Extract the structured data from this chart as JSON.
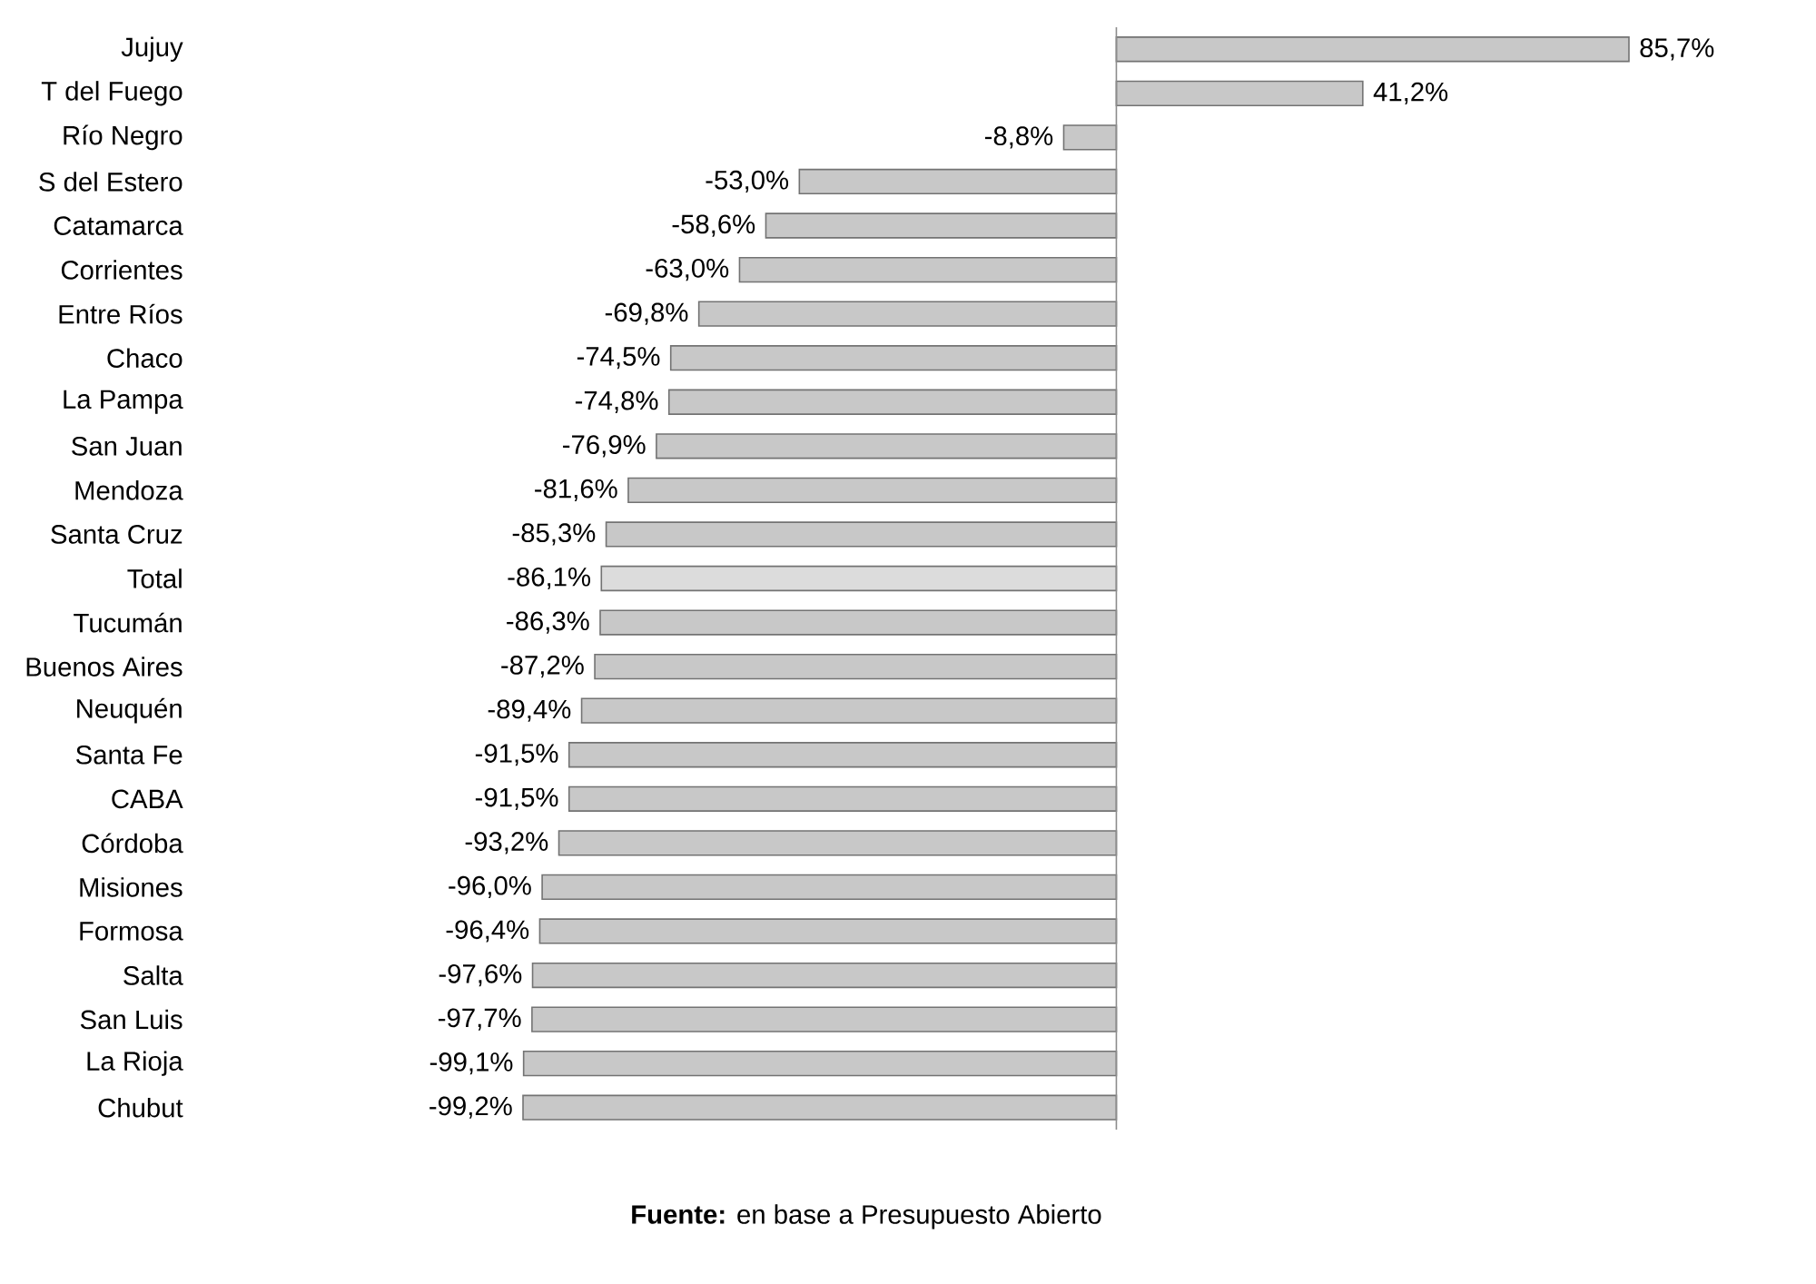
{
  "chart_data": {
    "type": "bar",
    "orientation": "horizontal",
    "categories": [
      "Jujuy",
      "T del Fuego",
      "Río Negro",
      "S del Estero",
      "Catamarca",
      "Corrientes",
      "Entre Ríos",
      "Chaco",
      "La Pampa",
      "San Juan",
      "Mendoza",
      "Santa Cruz",
      "Total",
      "Tucumán",
      "Buenos Aires",
      "Neuquén",
      "Santa Fe",
      "CABA",
      "Córdoba",
      "Misiones",
      "Formosa",
      "Salta",
      "San Luis",
      "La Rioja",
      "Chubut"
    ],
    "values": [
      85.7,
      41.2,
      -8.8,
      -53.0,
      -58.6,
      -63.0,
      -69.8,
      -74.5,
      -74.8,
      -76.9,
      -81.6,
      -85.3,
      -86.1,
      -86.3,
      -87.2,
      -89.4,
      -91.5,
      -91.5,
      -93.2,
      -96.0,
      -96.4,
      -97.6,
      -97.7,
      -99.1,
      -99.2
    ],
    "value_labels": [
      "85,7%",
      "41,2%",
      "-8,8%",
      "-53,0%",
      "-58,6%",
      "-63,0%",
      "-69,8%",
      "-74,5%",
      "-74,8%",
      "-76,9%",
      "-81,6%",
      "-85,3%",
      "-86,1%",
      "-86,3%",
      "-87,2%",
      "-89,4%",
      "-91,5%",
      "-91,5%",
      "-93,2%",
      "-96,0%",
      "-96,4%",
      "-97,6%",
      "-97,7%",
      "-99,1%",
      "-99,2%"
    ],
    "colors": [
      "#c8c8c8",
      "#c8c8c8",
      "#c8c8c8",
      "#c8c8c8",
      "#c8c8c8",
      "#c8c8c8",
      "#c8c8c8",
      "#c8c8c8",
      "#c8c8c8",
      "#c8c8c8",
      "#c8c8c8",
      "#c8c8c8",
      "#dcdcdc",
      "#c8c8c8",
      "#c8c8c8",
      "#c8c8c8",
      "#c8c8c8",
      "#c8c8c8",
      "#c8c8c8",
      "#c8c8c8",
      "#c8c8c8",
      "#c8c8c8",
      "#c8c8c8",
      "#c8c8c8",
      "#c8c8c8"
    ],
    "tick_labels": "y",
    "annotations": [
      "**Fuente:** en base a Presupuesto Abierto"
    ]
  }
}
